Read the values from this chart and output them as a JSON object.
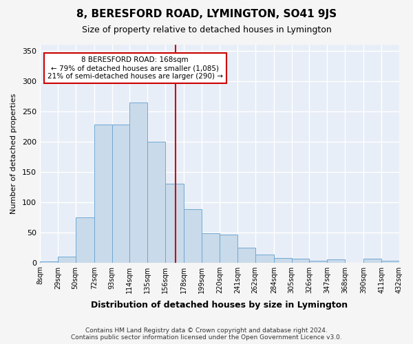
{
  "title": "8, BERESFORD ROAD, LYMINGTON, SO41 9JS",
  "subtitle": "Size of property relative to detached houses in Lymington",
  "xlabel": "Distribution of detached houses by size in Lymington",
  "ylabel": "Number of detached properties",
  "bar_color": "#c9daea",
  "bar_edge_color": "#6fa8d4",
  "background_color": "#e8eef7",
  "grid_color": "#ffffff",
  "annotation_box_color": "#ffffff",
  "annotation_border_color": "#cc0000",
  "vline_color": "#cc0000",
  "vline_x": 168,
  "annotation_text_line1": "8 BERESFORD ROAD: 168sqm",
  "annotation_text_line2": "← 79% of detached houses are smaller (1,085)",
  "annotation_text_line3": "21% of semi-detached houses are larger (290) →",
  "footer_line1": "Contains HM Land Registry data © Crown copyright and database right 2024.",
  "footer_line2": "Contains public sector information licensed under the Open Government Licence v3.0.",
  "bin_edges": [
    8,
    29,
    50,
    72,
    93,
    114,
    135,
    156,
    178,
    199,
    220,
    241,
    262,
    284,
    305,
    326,
    347,
    368,
    390,
    411,
    432
  ],
  "bin_labels": [
    "8sqm",
    "29sqm",
    "50sqm",
    "72sqm",
    "93sqm",
    "114sqm",
    "135sqm",
    "156sqm",
    "178sqm",
    "199sqm",
    "220sqm",
    "241sqm",
    "262sqm",
    "284sqm",
    "305sqm",
    "326sqm",
    "347sqm",
    "368sqm",
    "390sqm",
    "411sqm",
    "432sqm"
  ],
  "bar_heights": [
    2,
    10,
    75,
    228,
    228,
    265,
    200,
    130,
    88,
    48,
    46,
    25,
    13,
    8,
    6,
    3,
    5,
    0,
    6,
    3
  ],
  "ylim": [
    0,
    360
  ],
  "ytick_interval": 50
}
